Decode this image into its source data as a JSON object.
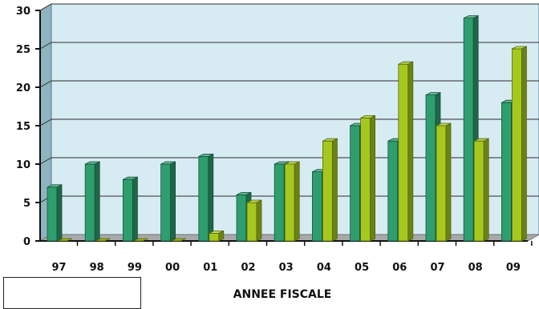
{
  "chart_data": {
    "type": "bar",
    "categories": [
      "97",
      "98",
      "99",
      "00",
      "01",
      "02",
      "03",
      "04",
      "05",
      "06",
      "07",
      "08",
      "09"
    ],
    "series": [
      {
        "values": [
          7,
          10,
          8,
          10,
          11,
          6,
          10,
          9,
          15,
          13,
          19,
          29,
          18
        ]
      },
      {
        "values": [
          0,
          0,
          0,
          0,
          1,
          5,
          10,
          13,
          16,
          23,
          15,
          13,
          25
        ]
      }
    ],
    "title": "",
    "xlabel": "ANNEE FISCALE",
    "ylabel": "",
    "ylim": [
      0,
      30
    ],
    "yticks": [
      0,
      5,
      10,
      15,
      20,
      25,
      30
    ],
    "grid": true,
    "colors": {
      "series_1": "#2e9e6f",
      "series_2": "#a6c81e",
      "plot_background": "#d7ebf3",
      "floor": "#a7a9ab",
      "left_wall": "#8fb3bf"
    }
  }
}
